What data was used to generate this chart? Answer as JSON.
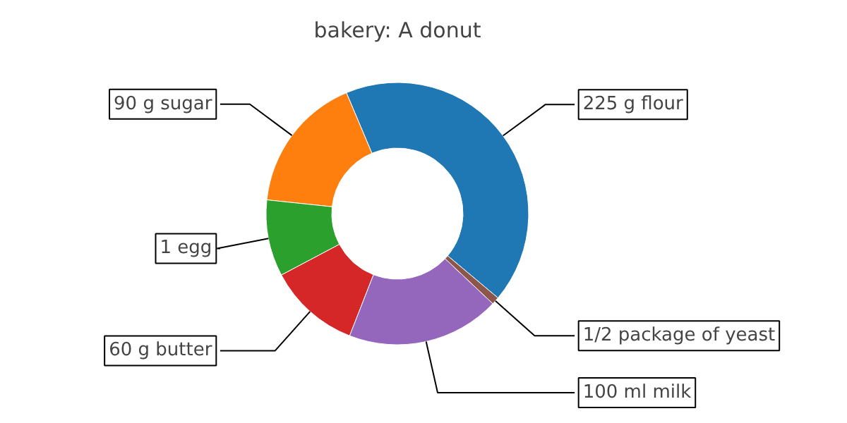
{
  "chart_data": {
    "type": "donut",
    "title": "bakery: A donut",
    "categories": [
      "225 g flour",
      "90 g sugar",
      "1 egg",
      "60 g butter",
      "100 ml milk",
      "1/2 package of yeast"
    ],
    "values": [
      42.46,
      16.98,
      9.43,
      11.32,
      18.87,
      0.94
    ],
    "colors": [
      "#1f77b4",
      "#ff7f0e",
      "#2ca02c",
      "#d62728",
      "#9467bd",
      "#8c564b"
    ]
  }
}
